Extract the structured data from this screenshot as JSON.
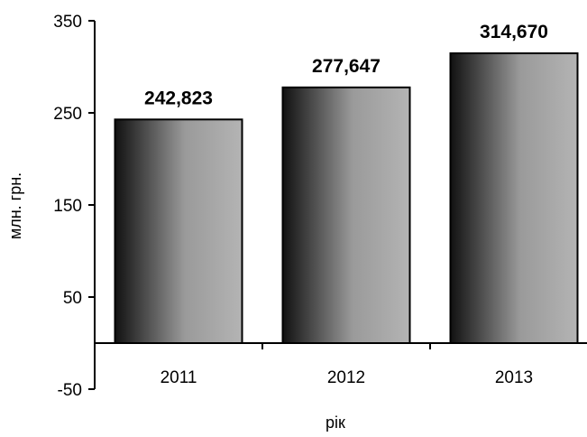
{
  "chart_data": {
    "type": "bar",
    "categories": [
      "2011",
      "2012",
      "2013"
    ],
    "values": [
      242.823,
      277.647,
      314.67
    ],
    "data_labels": [
      "242,823",
      "277,647",
      "314,670"
    ],
    "xlabel": "рік",
    "ylabel": "млн. грн.",
    "ylim": [
      -50,
      350
    ],
    "yticks": [
      350,
      250,
      150,
      50,
      -50
    ],
    "grid": false,
    "legend": "none",
    "bar_gradient": [
      "#111111",
      "#9a9a9a",
      "#b4b4b4"
    ],
    "bar_border": "#000000"
  }
}
